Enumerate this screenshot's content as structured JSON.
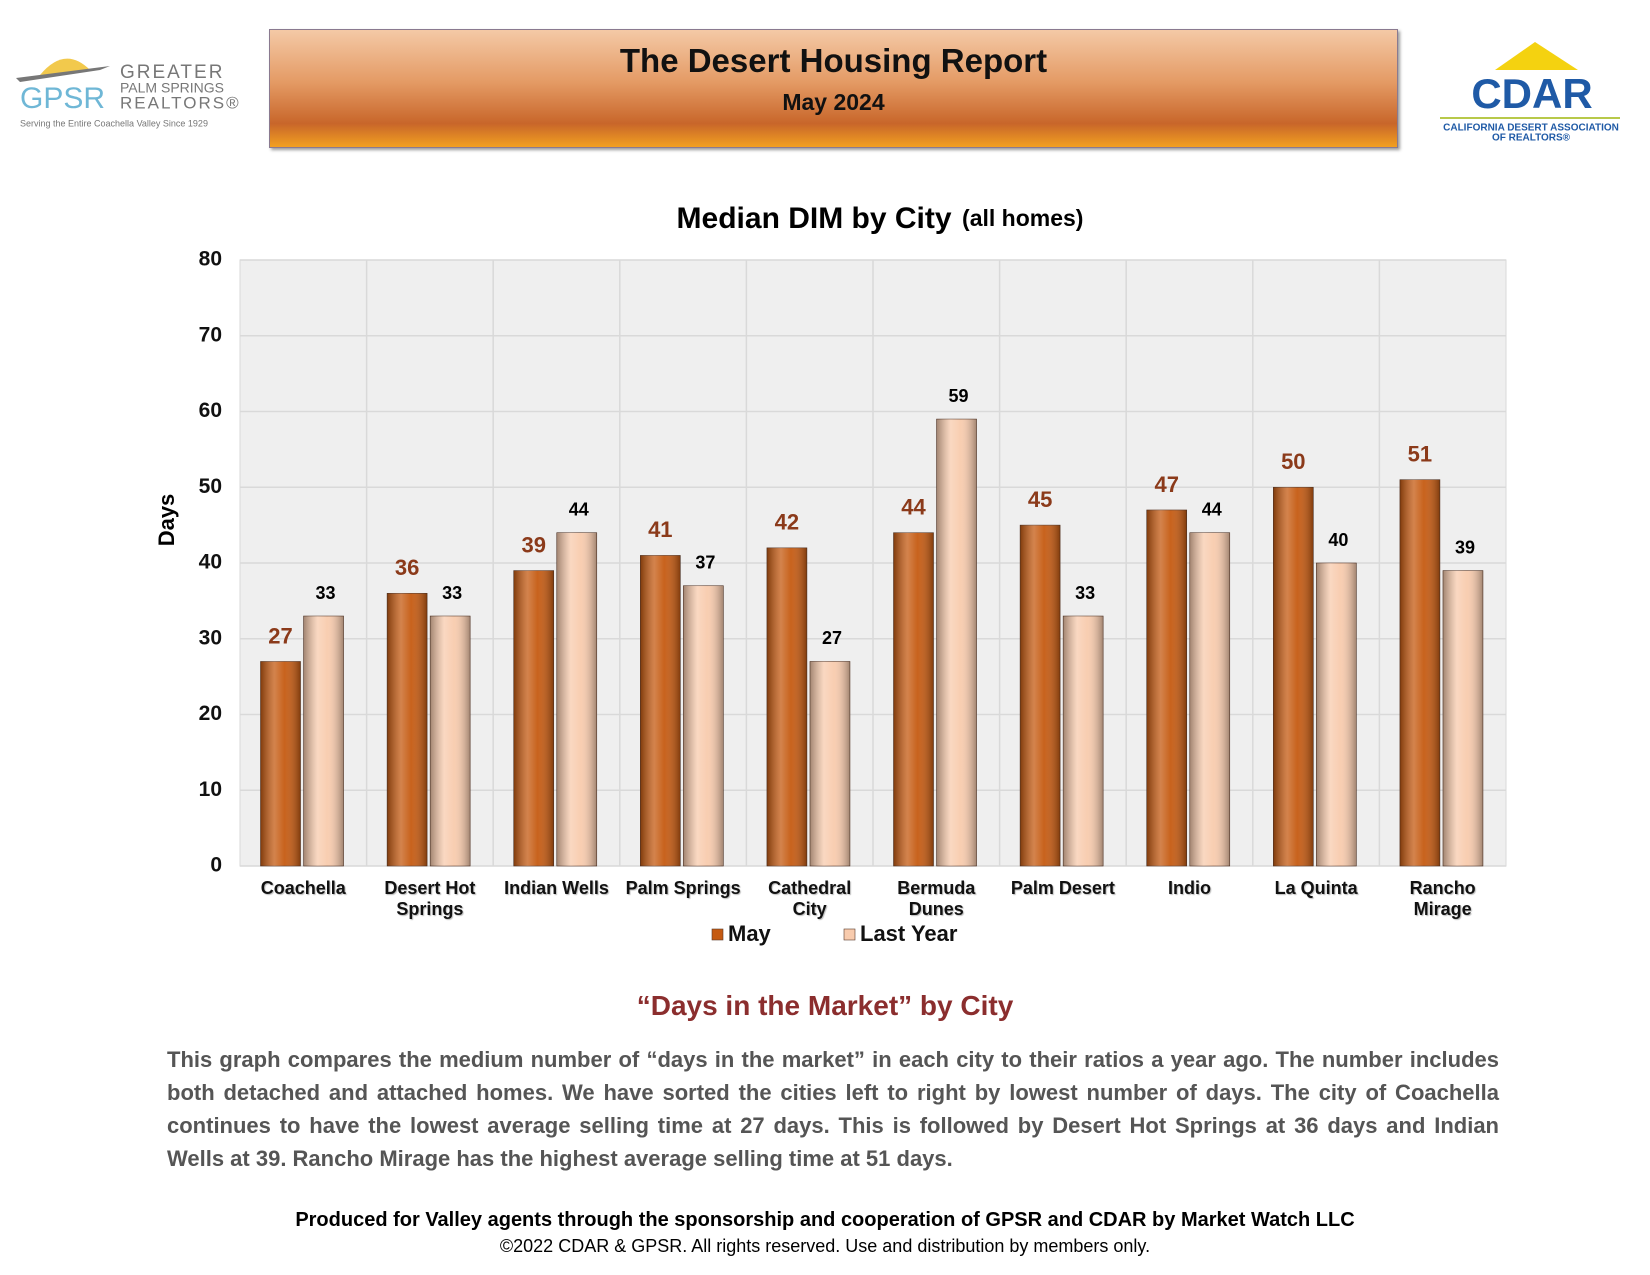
{
  "header": {
    "title": "The Desert Housing Report",
    "subtitle": "May 2024"
  },
  "logo_left": {
    "mark": "GPSR",
    "line1": "GREATER",
    "line2": "PALM SPRINGS",
    "line3": "REALTORS®",
    "tagline": "Serving the Entire Coachella Valley Since 1929"
  },
  "logo_right": {
    "mark": "CDAR",
    "line1": "CALIFORNIA DESERT ASSOCIATION",
    "line2": "OF REALTORS®"
  },
  "chart_data": {
    "type": "bar",
    "title": "Median DIM by City",
    "title_note": "(all homes)",
    "y_label": "Days",
    "categories": [
      "Coachella",
      "Desert Hot\nSprings",
      "Indian Wells",
      "Palm Springs",
      "Cathedral\nCity",
      "Bermuda\nDunes",
      "Palm Desert",
      "Indio",
      "La Quinta",
      "Rancho\nMirage"
    ],
    "series": [
      {
        "name": "May",
        "color": "#c55a11",
        "label_color": "#8b3a1a",
        "values": [
          27,
          36,
          39,
          41,
          42,
          44,
          45,
          47,
          50,
          51
        ]
      },
      {
        "name": "Last Year",
        "color": "#f8cbad",
        "label_color": "#000000",
        "values": [
          33,
          33,
          44,
          37,
          27,
          59,
          33,
          44,
          40,
          39
        ]
      }
    ],
    "ylim": [
      0,
      80
    ],
    "yticks": [
      0,
      10,
      20,
      30,
      40,
      50,
      60,
      70,
      80
    ],
    "grid": true,
    "legend": "bottom"
  },
  "text": {
    "heading": "“Days in the Market” by City",
    "body": "This graph compares the medium number of “days in the market” in each city to their ratios a year ago. The number includes both detached and attached homes. We have sorted the cities left to right by lowest number of days. The city of Coachella continues to have the lowest average selling time at 27 days. This is followed by Desert Hot Springs at 36 days and Indian Wells at 39. Rancho Mirage has the highest average selling time at 51 days."
  },
  "footer": {
    "line1": "Produced for Valley agents through the sponsorship and cooperation of GPSR and CDAR by Market Watch LLC",
    "line2": "©2022 CDAR & GPSR.  All rights reserved.  Use and distribution by members only."
  }
}
